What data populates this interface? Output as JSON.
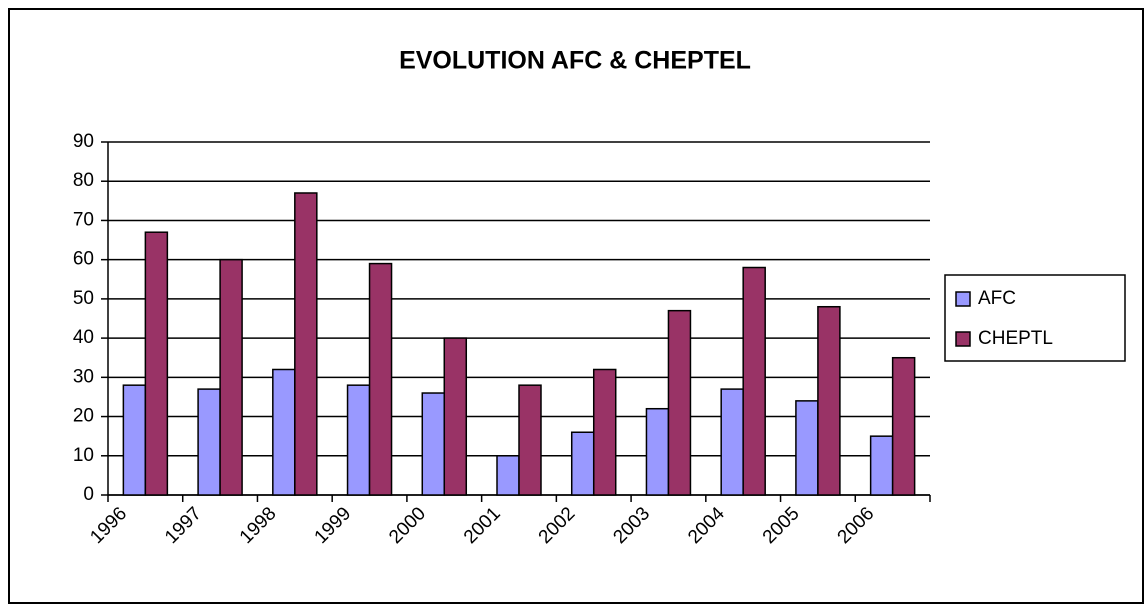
{
  "chart_data": {
    "type": "bar",
    "title": "EVOLUTION AFC & CHEPTEL",
    "categories": [
      "1996",
      "1997",
      "1998",
      "1999",
      "2000",
      "2001",
      "2002",
      "2003",
      "2004",
      "2005",
      "2006"
    ],
    "series": [
      {
        "name": "AFC",
        "color": "#9999ff",
        "values": [
          28,
          27,
          32,
          28,
          26,
          10,
          16,
          22,
          27,
          24,
          15
        ]
      },
      {
        "name": "CHEPTL",
        "color": "#993366",
        "values": [
          67,
          60,
          77,
          59,
          40,
          28,
          32,
          47,
          58,
          48,
          35
        ]
      }
    ],
    "ylim": [
      0,
      90
    ],
    "yticks": [
      0,
      10,
      20,
      30,
      40,
      50,
      60,
      70,
      80,
      90
    ],
    "grid": true,
    "legend": "right"
  }
}
